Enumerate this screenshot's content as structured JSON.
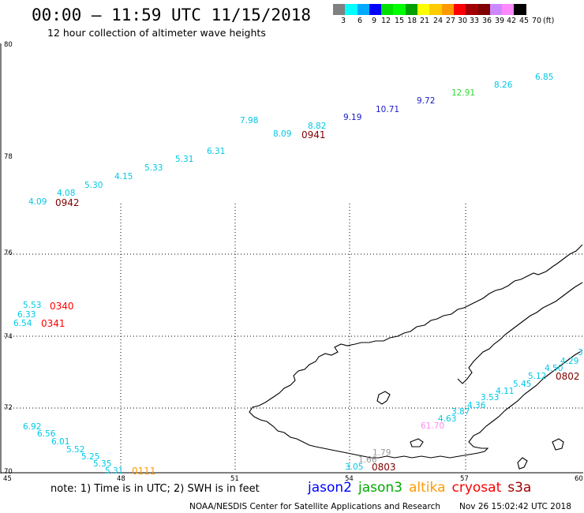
{
  "header": {
    "title": "00:00 – 11:59 UTC 11/15/2018",
    "subtitle": "12 hour collection of altimeter wave heights"
  },
  "legend": {
    "swatches": [
      {
        "color": "#808080"
      },
      {
        "color": "#00ffff"
      },
      {
        "color": "#00aaff"
      },
      {
        "color": "#0000ff"
      },
      {
        "color": "#00e000"
      },
      {
        "color": "#00ff00"
      },
      {
        "color": "#00a000"
      },
      {
        "color": "#ffff00"
      },
      {
        "color": "#ffcc00"
      },
      {
        "color": "#ff9900"
      },
      {
        "color": "#ff0000"
      },
      {
        "color": "#a00000"
      },
      {
        "color": "#800000"
      },
      {
        "color": "#cc88ff"
      },
      {
        "color": "#ff88ff"
      },
      {
        "color": "#000000"
      }
    ],
    "labels": [
      "3",
      "6",
      "9",
      "12",
      "15",
      "18",
      "21",
      "24",
      "27",
      "30",
      "33",
      "36",
      "39",
      "42",
      "45",
      "70",
      "(ft)"
    ]
  },
  "map": {
    "lat_labels": [
      "80",
      "78",
      "76",
      "74",
      "72",
      "70"
    ],
    "lon_labels": [
      "45",
      "48",
      "51",
      "54",
      "57",
      "60"
    ],
    "wave_heights": [
      {
        "text": "6.85",
        "color": "#00c8e6"
      },
      {
        "text": "8.26",
        "color": "#00c8e6"
      },
      {
        "text": "12.91",
        "color": "#33dd33"
      },
      {
        "text": "9.72",
        "color": "#1a1acc"
      },
      {
        "text": "10.71",
        "color": "#1a1acc"
      },
      {
        "text": "9.19",
        "color": "#1a1acc"
      },
      {
        "text": "8.82",
        "color": "#00c8e6"
      },
      {
        "text": "8.09",
        "color": "#00c8e6"
      },
      {
        "text": "7.98",
        "color": "#00c8e6"
      },
      {
        "text": "6.31",
        "color": "#00c8e6"
      },
      {
        "text": "5.31",
        "color": "#00c8e6"
      },
      {
        "text": "5.33",
        "color": "#00c8e6"
      },
      {
        "text": "4.15",
        "color": "#00c8e6"
      },
      {
        "text": "5.30",
        "color": "#00c8e6"
      },
      {
        "text": "4.08",
        "color": "#00c8e6"
      },
      {
        "text": "4.09",
        "color": "#00c8e6"
      },
      {
        "text": "5.53",
        "color": "#00c8e6"
      },
      {
        "text": "6.33",
        "color": "#00c8e6"
      },
      {
        "text": "6.54",
        "color": "#00c8e6"
      },
      {
        "text": "6.92",
        "color": "#00c8e6"
      },
      {
        "text": "6.56",
        "color": "#00c8e6"
      },
      {
        "text": "6.01",
        "color": "#00c8e6"
      },
      {
        "text": "5.52",
        "color": "#00c8e6"
      },
      {
        "text": "5.25",
        "color": "#00c8e6"
      },
      {
        "text": "5.35",
        "color": "#00c8e6"
      },
      {
        "text": "5.31",
        "color": "#00c8e6"
      },
      {
        "text": "3",
        "color": "#00c8e6"
      },
      {
        "text": "4.29",
        "color": "#00c8e6"
      },
      {
        "text": "4.50",
        "color": "#00c8e6"
      },
      {
        "text": "5.12",
        "color": "#00c8e6"
      },
      {
        "text": "5.45",
        "color": "#00c8e6"
      },
      {
        "text": "4.11",
        "color": "#00c8e6"
      },
      {
        "text": "3.53",
        "color": "#00c8e6"
      },
      {
        "text": "4.36",
        "color": "#00c8e6"
      },
      {
        "text": "3.87",
        "color": "#00c8e6"
      },
      {
        "text": "4.63",
        "color": "#00c8e6"
      },
      {
        "text": "61.70",
        "color": "#ff88ee"
      },
      {
        "text": "1.79",
        "color": "#999999"
      },
      {
        "text": "1.66",
        "color": "#999999"
      },
      {
        "text": "3.05",
        "color": "#00c8e6"
      }
    ],
    "pass_times": [
      {
        "text": "0941",
        "color": "#800000"
      },
      {
        "text": "0942",
        "color": "#800000"
      },
      {
        "text": "0340",
        "color": "#ff0000"
      },
      {
        "text": "0341",
        "color": "#ff0000"
      },
      {
        "text": "0111",
        "color": "#ff9900"
      },
      {
        "text": "0803",
        "color": "#800000"
      },
      {
        "text": "0802",
        "color": "#800000"
      }
    ]
  },
  "footer": {
    "note": "note: 1) Time is in UTC; 2) SWH is in feet",
    "satellites": [
      {
        "name": "jason2",
        "color": "#0000ff"
      },
      {
        "name": "jason3",
        "color": "#00aa00"
      },
      {
        "name": "altika",
        "color": "#ff9900"
      },
      {
        "name": "cryosat",
        "color": "#ff0000"
      },
      {
        "name": "s3a",
        "color": "#a00000"
      }
    ],
    "credit": "NOAA/NESDIS Center for Satellite Applications and Research",
    "timestamp": "Nov 26 15:02:42 UTC 2018"
  }
}
